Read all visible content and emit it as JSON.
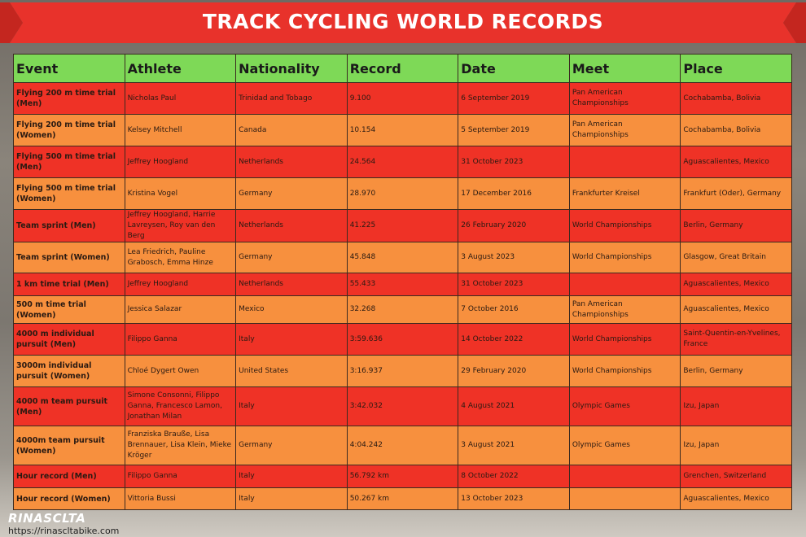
{
  "header": {
    "title": "TRACK CYCLING WORLD RECORDS"
  },
  "table": {
    "columns": [
      "Event",
      "Athlete",
      "Nationality",
      "Record",
      "Date",
      "Meet",
      "Place"
    ],
    "rows": [
      [
        "Flying 200 m time trial (Men)",
        "Nicholas Paul",
        "Trinidad and Tobago",
        "9.100",
        "6 September 2019",
        "Pan American Championships",
        "Cochabamba, Bolivia"
      ],
      [
        "Flying 200 m time trial (Women)",
        "Kelsey Mitchell",
        "Canada",
        "10.154",
        "5 September 2019",
        "Pan American Championships",
        "Cochabamba, Bolivia"
      ],
      [
        "Flying 500 m time trial (Men)",
        "Jeffrey Hoogland",
        "Netherlands",
        "24.564",
        "31 October 2023",
        null,
        "Aguascalientes, Mexico"
      ],
      [
        "Flying 500 m time trial (Women)",
        "Kristina Vogel",
        "Germany",
        "28.970",
        "17 December 2016",
        "Frankfurter Kreisel",
        "Frankfurt (Oder), Germany"
      ],
      [
        "Team sprint (Men)",
        "Jeffrey Hoogland, Harrie Lavreysen, Roy van den Berg",
        "Netherlands",
        "41.225",
        "26 February 2020",
        "World Championships",
        "Berlin, Germany"
      ],
      [
        "Team sprint (Women)",
        "Lea Friedrich, Pauline Grabosch, Emma Hinze",
        "Germany",
        "45.848",
        "3 August 2023",
        "World Championships",
        "Glasgow, Great Britain"
      ],
      [
        "1 km time trial (Men)",
        "Jeffrey Hoogland",
        "Netherlands",
        "55.433",
        "31 October 2023",
        null,
        "Aguascalientes, Mexico"
      ],
      [
        "500 m time trial (Women)",
        "Jessica Salazar",
        "Mexico",
        "32.268",
        "7 October 2016",
        "Pan American Championships",
        "Aguascalientes, Mexico"
      ],
      [
        "4000 m individual pursuit (Men)",
        "Filippo Ganna",
        "Italy",
        "3:59.636",
        "14 October 2022",
        "World Championships",
        "Saint-Quentin-en-Yvelines, France"
      ],
      [
        "3000m individual pursuit (Women)",
        "Chloé Dygert Owen",
        "United States",
        "3:16.937",
        "29 February 2020",
        "World Championships",
        "Berlin, Germany"
      ],
      [
        "4000 m team pursuit (Men)",
        "Simone Consonni, Filippo Ganna, Francesco Lamon, Jonathan Milan",
        "Italy",
        "3:42.032",
        "4 August 2021",
        "Olympic Games",
        "Izu, Japan"
      ],
      [
        "4000m team pursuit (Women)",
        "Franziska Brauße, Lisa Brennauer, Lisa Klein, Mieke Kröger",
        "Germany",
        "4:04.242",
        "3 August 2021",
        "Olympic Games",
        "Izu, Japan"
      ],
      [
        "Hour record (Men)",
        "Filippo Ganna",
        "Italy",
        "56.792 km",
        "8 October 2022",
        null,
        "Grenchen, Switzerland"
      ],
      [
        "Hour record (Women)",
        "Vittoria Bussi",
        "Italy",
        "50.267 km",
        "13 October 2023",
        null,
        "Aguascalientes, Mexico"
      ]
    ]
  },
  "footer": {
    "brand": "RINASCLTA",
    "url": "https://rinascltabike.com"
  }
}
